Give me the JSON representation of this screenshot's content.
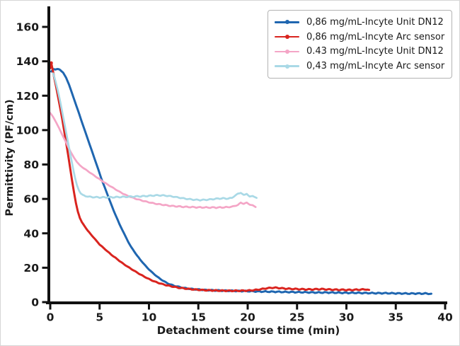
{
  "figure": {
    "background": "#ffffff",
    "border_color": "#d6d6d6"
  },
  "chart_data": {
    "type": "line",
    "title": "",
    "xlabel": "Detachment course time (min)",
    "ylabel": "Permittivity (PF/cm)",
    "xlim": [
      0,
      40
    ],
    "ylim": [
      0,
      160
    ],
    "x_ticks": [
      0,
      5,
      10,
      15,
      20,
      25,
      30,
      35,
      40
    ],
    "y_ticks": [
      0,
      20,
      40,
      60,
      80,
      100,
      120,
      140,
      160
    ],
    "grid": false,
    "legend_position": "upper right",
    "axis_color": "#111111",
    "tick_label_color": "#1a1a1a",
    "series": [
      {
        "name": "0,86 mg/mL-Incyte Unit DN12",
        "color": "#1f66b0",
        "points": [
          [
            0.1,
            134
          ],
          [
            0.35,
            135.5
          ],
          [
            0.7,
            135.5
          ],
          [
            1,
            135
          ],
          [
            1.3,
            133.5
          ],
          [
            1.6,
            130.5
          ],
          [
            1.9,
            126.5
          ],
          [
            2.2,
            121.5
          ],
          [
            2.5,
            116.5
          ],
          [
            2.8,
            111.5
          ],
          [
            3.1,
            106.5
          ],
          [
            3.4,
            101.5
          ],
          [
            3.7,
            96.5
          ],
          [
            4,
            91.5
          ],
          [
            4.3,
            86.5
          ],
          [
            4.6,
            81.5
          ],
          [
            4.9,
            76.5
          ],
          [
            5.2,
            71.5
          ],
          [
            5.5,
            67
          ],
          [
            5.8,
            62.5
          ],
          [
            6.1,
            58
          ],
          [
            6.4,
            53.5
          ],
          [
            6.7,
            49.5
          ],
          [
            7,
            45.5
          ],
          [
            7.3,
            42
          ],
          [
            7.6,
            38.5
          ],
          [
            7.9,
            35
          ],
          [
            8.2,
            32
          ],
          [
            8.5,
            29.5
          ],
          [
            8.8,
            27
          ],
          [
            9.1,
            24.8
          ],
          [
            9.4,
            22.8
          ],
          [
            9.7,
            20.8
          ],
          [
            10,
            19
          ],
          [
            10.3,
            17.4
          ],
          [
            10.6,
            15.9
          ],
          [
            10.9,
            14.5
          ],
          [
            11.2,
            13.3
          ],
          [
            11.5,
            12.2
          ],
          [
            11.8,
            11.2
          ],
          [
            12.1,
            10.4
          ],
          [
            12.5,
            9.6
          ],
          [
            12.9,
            9
          ],
          [
            13.3,
            8.5
          ],
          [
            13.7,
            8.1
          ],
          [
            14.1,
            7.8
          ],
          [
            14.6,
            7.5
          ],
          [
            15.1,
            7.3
          ],
          [
            15.6,
            7.1
          ],
          [
            16.2,
            6.9
          ],
          [
            17,
            6.8
          ],
          [
            18,
            6.6
          ],
          [
            19,
            6.5
          ],
          [
            20,
            6.4
          ],
          [
            21,
            6.2
          ],
          [
            22,
            6.1
          ],
          [
            23,
            6
          ],
          [
            24,
            5.9
          ],
          [
            25,
            5.8
          ],
          [
            26,
            5.7
          ],
          [
            27,
            5.6
          ],
          [
            28,
            5.6
          ],
          [
            29,
            5.5
          ],
          [
            30,
            5.4
          ],
          [
            31,
            5.4
          ],
          [
            32,
            5.3
          ],
          [
            33,
            5.2
          ],
          [
            34,
            5.2
          ],
          [
            35,
            5.1
          ],
          [
            36,
            5
          ],
          [
            37,
            5
          ],
          [
            38,
            5
          ],
          [
            38.6,
            4.9
          ]
        ]
      },
      {
        "name": "0,86 mg/mL-Incyte Arc sensor",
        "color": "#d9241f",
        "points": [
          [
            0,
            136
          ],
          [
            0.1,
            139
          ],
          [
            0.25,
            135
          ],
          [
            0.4,
            130.5
          ],
          [
            0.6,
            125
          ],
          [
            0.8,
            119
          ],
          [
            1,
            113
          ],
          [
            1.2,
            107
          ],
          [
            1.4,
            100
          ],
          [
            1.6,
            93
          ],
          [
            1.8,
            86
          ],
          [
            2,
            78.5
          ],
          [
            2.2,
            71
          ],
          [
            2.4,
            64
          ],
          [
            2.6,
            57.5
          ],
          [
            2.8,
            52.5
          ],
          [
            3,
            49
          ],
          [
            3.2,
            46.5
          ],
          [
            3.5,
            44
          ],
          [
            3.8,
            41.5
          ],
          [
            4.1,
            39.5
          ],
          [
            4.4,
            37.5
          ],
          [
            4.7,
            35.5
          ],
          [
            5,
            33.5
          ],
          [
            5.4,
            31.5
          ],
          [
            5.8,
            29.5
          ],
          [
            6.2,
            27.5
          ],
          [
            6.6,
            25.8
          ],
          [
            7,
            24
          ],
          [
            7.4,
            22.3
          ],
          [
            7.8,
            20.8
          ],
          [
            8.2,
            19.3
          ],
          [
            8.6,
            17.9
          ],
          [
            9,
            16.5
          ],
          [
            9.4,
            15.2
          ],
          [
            9.8,
            14
          ],
          [
            10.2,
            12.9
          ],
          [
            10.6,
            11.9
          ],
          [
            11,
            11.1
          ],
          [
            11.4,
            10.4
          ],
          [
            11.8,
            9.8
          ],
          [
            12.2,
            9.3
          ],
          [
            12.6,
            8.8
          ],
          [
            13,
            8.4
          ],
          [
            13.5,
            8
          ],
          [
            14,
            7.7
          ],
          [
            14.5,
            7.4
          ],
          [
            15,
            7.2
          ],
          [
            15.5,
            7
          ],
          [
            16,
            6.9
          ],
          [
            17,
            6.7
          ],
          [
            18,
            6.6
          ],
          [
            19,
            6.6
          ],
          [
            20,
            6.7
          ],
          [
            20.5,
            6.9
          ],
          [
            21,
            7.2
          ],
          [
            21.5,
            7.7
          ],
          [
            22,
            8.1
          ],
          [
            22.5,
            8.4
          ],
          [
            23,
            8.3
          ],
          [
            23.5,
            8
          ],
          [
            24,
            7.8
          ],
          [
            24.5,
            7.7
          ],
          [
            25,
            7.6
          ],
          [
            25.5,
            7.5
          ],
          [
            26,
            7.4
          ],
          [
            26.5,
            7.4
          ],
          [
            27,
            7.5
          ],
          [
            27.5,
            7.6
          ],
          [
            28,
            7.4
          ],
          [
            28.5,
            7.3
          ],
          [
            29,
            7.2
          ],
          [
            29.5,
            7.2
          ],
          [
            30,
            7.1
          ],
          [
            30.5,
            7.1
          ],
          [
            31,
            7.2
          ],
          [
            31.5,
            7.3
          ],
          [
            32,
            7.4
          ],
          [
            32.3,
            7.1
          ]
        ]
      },
      {
        "name": "0.43 mg/mL-Incyte Unit DN12",
        "color": "#f4a5c6",
        "points": [
          [
            0,
            110
          ],
          [
            0.3,
            107.5
          ],
          [
            0.6,
            104.5
          ],
          [
            0.9,
            101
          ],
          [
            1.2,
            97.5
          ],
          [
            1.5,
            94
          ],
          [
            1.8,
            90.5
          ],
          [
            2.1,
            87
          ],
          [
            2.4,
            84
          ],
          [
            2.7,
            81.5
          ],
          [
            3,
            79.5
          ],
          [
            3.4,
            77.8
          ],
          [
            3.8,
            76.2
          ],
          [
            4.2,
            74.6
          ],
          [
            4.6,
            73
          ],
          [
            5,
            71.4
          ],
          [
            5.4,
            69.9
          ],
          [
            5.8,
            68.4
          ],
          [
            6.2,
            67
          ],
          [
            6.6,
            65.6
          ],
          [
            7,
            64.2
          ],
          [
            7.4,
            63
          ],
          [
            7.8,
            61.9
          ],
          [
            8.2,
            61
          ],
          [
            8.6,
            60.2
          ],
          [
            9,
            59.5
          ],
          [
            9.4,
            58.9
          ],
          [
            9.8,
            58.3
          ],
          [
            10.2,
            57.8
          ],
          [
            10.6,
            57.3
          ],
          [
            11,
            56.9
          ],
          [
            11.5,
            56.5
          ],
          [
            12,
            56.1
          ],
          [
            12.5,
            55.8
          ],
          [
            13,
            55.6
          ],
          [
            13.5,
            55.4
          ],
          [
            14,
            55.3
          ],
          [
            15,
            55.1
          ],
          [
            16,
            55
          ],
          [
            17,
            55
          ],
          [
            18,
            55.2
          ],
          [
            18.5,
            55.6
          ],
          [
            19,
            56.5
          ],
          [
            19.3,
            57.8
          ],
          [
            19.6,
            57.2
          ],
          [
            19.9,
            57.8
          ],
          [
            20.2,
            56.8
          ],
          [
            20.5,
            56.2
          ],
          [
            20.8,
            55.3
          ]
        ]
      },
      {
        "name": "0,43 mg/mL-Incyte Arc sensor",
        "color": "#a9d9e6",
        "points": [
          [
            0.3,
            133
          ],
          [
            0.5,
            129
          ],
          [
            0.7,
            124.5
          ],
          [
            0.9,
            119.5
          ],
          [
            1.1,
            114
          ],
          [
            1.3,
            108
          ],
          [
            1.5,
            102
          ],
          [
            1.7,
            96
          ],
          [
            1.9,
            90
          ],
          [
            2.1,
            84
          ],
          [
            2.3,
            78
          ],
          [
            2.5,
            72.5
          ],
          [
            2.7,
            68
          ],
          [
            2.9,
            65
          ],
          [
            3.1,
            63.2
          ],
          [
            3.3,
            62.2
          ],
          [
            3.6,
            61.6
          ],
          [
            4,
            61.2
          ],
          [
            4.5,
            61
          ],
          [
            5,
            60.9
          ],
          [
            5.5,
            60.9
          ],
          [
            6,
            61
          ],
          [
            6.5,
            61
          ],
          [
            7,
            61.1
          ],
          [
            7.5,
            61.2
          ],
          [
            8,
            61.3
          ],
          [
            8.5,
            61.4
          ],
          [
            9,
            61.5
          ],
          [
            9.5,
            61.6
          ],
          [
            10,
            61.8
          ],
          [
            10.5,
            62
          ],
          [
            11,
            62.1
          ],
          [
            11.5,
            62
          ],
          [
            12,
            61.7
          ],
          [
            12.5,
            61.3
          ],
          [
            13,
            60.8
          ],
          [
            13.5,
            60.3
          ],
          [
            14,
            59.9
          ],
          [
            14.5,
            59.6
          ],
          [
            15,
            59.4
          ],
          [
            15.5,
            59.4
          ],
          [
            16,
            59.6
          ],
          [
            16.5,
            59.9
          ],
          [
            17,
            60.2
          ],
          [
            17.5,
            60.3
          ],
          [
            18,
            60.2
          ],
          [
            18.4,
            60.6
          ],
          [
            18.7,
            61.8
          ],
          [
            19,
            63
          ],
          [
            19.3,
            63.6
          ],
          [
            19.6,
            62.2
          ],
          [
            19.9,
            63
          ],
          [
            20.2,
            61.2
          ],
          [
            20.5,
            61.8
          ],
          [
            20.9,
            60.6
          ]
        ]
      }
    ]
  }
}
